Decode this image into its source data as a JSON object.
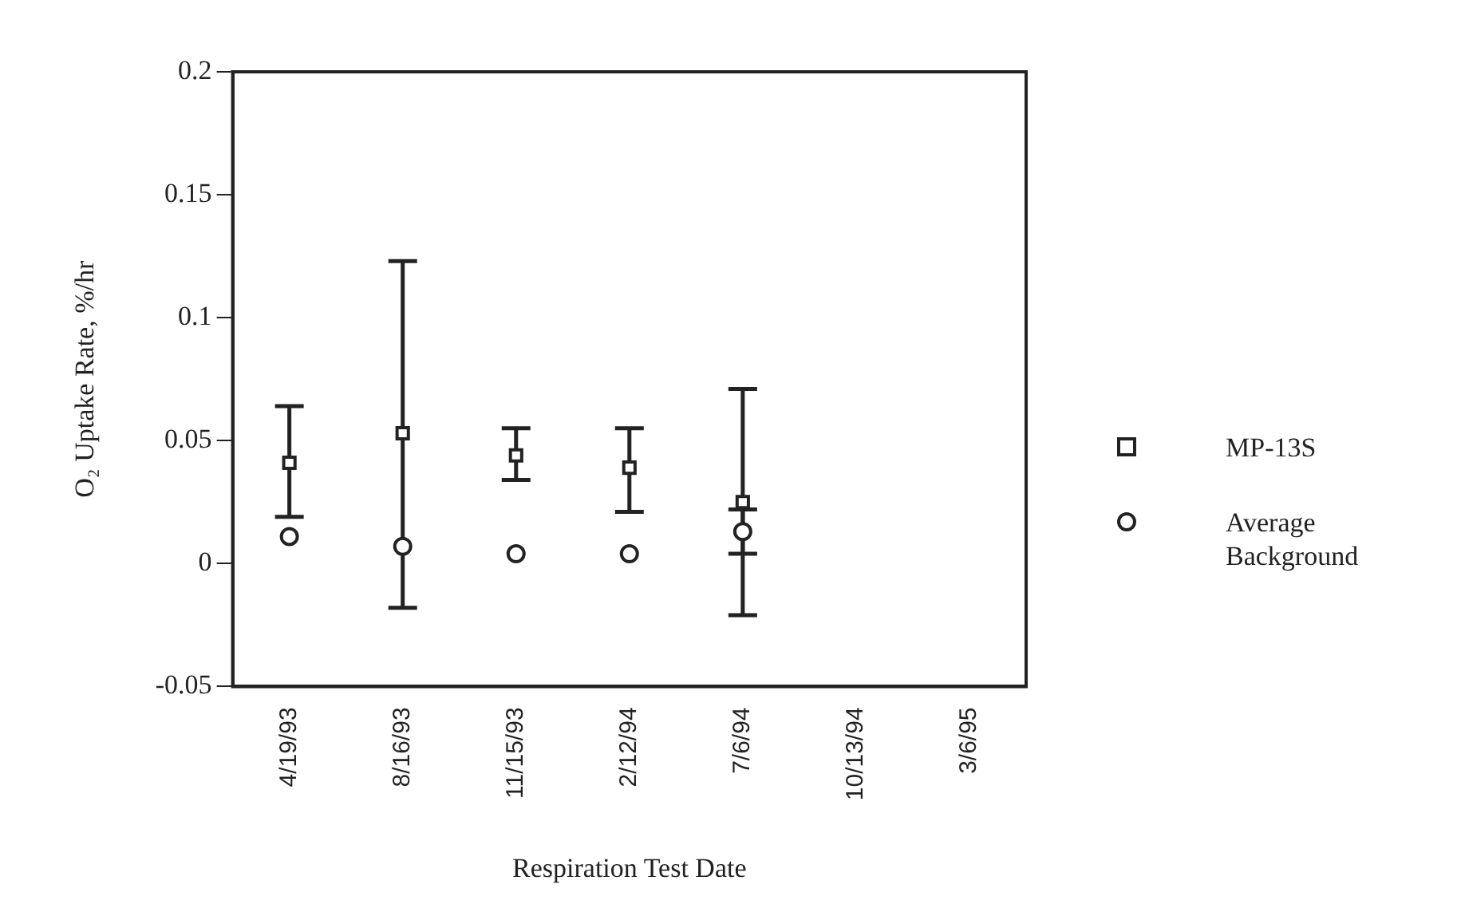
{
  "chart_data": {
    "type": "scatter",
    "xlabel": "Respiration Test Date",
    "ylabel": "O₂ Uptake Rate, %/hr",
    "categories": [
      "4/19/93",
      "8/16/93",
      "11/15/93",
      "2/12/94",
      "7/6/94",
      "10/13/94",
      "3/6/95"
    ],
    "series": [
      {
        "name": "MP-13S",
        "color": "#222222",
        "marker": "square",
        "values": [
          0.041,
          0.053,
          0.044,
          0.039,
          0.025,
          null,
          null
        ],
        "errors": [
          [
            0.019,
            0.064
          ],
          [
            -0.018,
            0.123
          ],
          [
            0.034,
            0.055
          ],
          [
            0.021,
            0.055
          ],
          [
            -0.021,
            0.071
          ],
          null,
          null
        ]
      },
      {
        "name": "Average Background",
        "color": "#222222",
        "marker": "circle",
        "values": [
          0.011,
          0.007,
          0.004,
          0.004,
          0.013,
          null,
          null
        ],
        "errors": [
          null,
          null,
          null,
          null,
          [
            0.004,
            0.022
          ],
          null,
          null
        ]
      }
    ],
    "ylim": [
      -0.05,
      0.2
    ],
    "yticks": [
      -0.05,
      0,
      0.05,
      0.1,
      0.15,
      0.2
    ],
    "grid": false,
    "legend": "right"
  }
}
